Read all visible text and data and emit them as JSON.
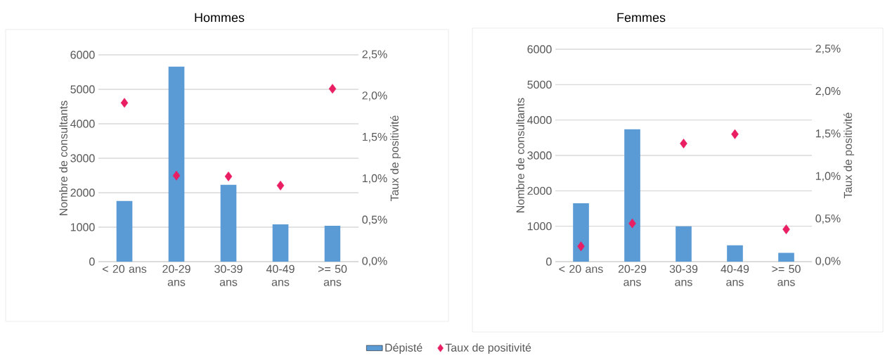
{
  "chart_data": [
    {
      "type": "bar",
      "title": "Hommes",
      "categories": [
        "< 20 ans",
        "20-29 ans",
        "30-39 ans",
        "40-49 ans",
        ">= 50 ans"
      ],
      "ylabel": "Nombre de consultants",
      "y2label": "Taux de positivité",
      "ylim": [
        0,
        6000
      ],
      "yticks": [
        0,
        1000,
        2000,
        3000,
        4000,
        5000,
        6000
      ],
      "y2lim": [
        0,
        2.5
      ],
      "y2ticks": [
        {
          "value": 0,
          "label": "0,0%"
        },
        {
          "value": 0.5,
          "label": "0,5%"
        },
        {
          "value": 1,
          "label": "1,0%"
        },
        {
          "value": 1.5,
          "label": "1,5%"
        },
        {
          "value": 2,
          "label": "2,0%"
        },
        {
          "value": 2.5,
          "label": "2,5%"
        }
      ],
      "grid": "y",
      "legend": "bottom",
      "marker": "diamond",
      "series": [
        {
          "name": "Dépisté",
          "color": "#5b9bd5",
          "values": [
            1760,
            5660,
            2230,
            1080,
            1040
          ]
        },
        {
          "name": "Taux de positivité",
          "type": "scatter",
          "axis": "y2",
          "color": "#e91e63",
          "values": [
            1.92,
            1.04,
            1.03,
            0.92,
            2.09
          ]
        }
      ]
    },
    {
      "type": "bar",
      "title": "Femmes",
      "categories": [
        "< 20 ans",
        "20-29 ans",
        "30-39 ans",
        "40-49 ans",
        ">= 50 ans"
      ],
      "ylabel": "Nombre de consultants",
      "y2label": "Taux de positivité",
      "ylim": [
        0,
        6000
      ],
      "yticks": [
        0,
        1000,
        2000,
        3000,
        4000,
        5000,
        6000
      ],
      "y2lim": [
        0,
        2.5
      ],
      "y2ticks": [
        {
          "value": 0,
          "label": "0,0%"
        },
        {
          "value": 0.5,
          "label": "0,5%"
        },
        {
          "value": 1,
          "label": "1,0%"
        },
        {
          "value": 1.5,
          "label": "1,5%"
        },
        {
          "value": 2,
          "label": "2,0%"
        },
        {
          "value": 2.5,
          "label": "2,5%"
        }
      ],
      "grid": "y",
      "marker": "diamond",
      "series": [
        {
          "color": "#5b9bd5",
          "values": [
            1650,
            3740,
            1000,
            460,
            250
          ]
        },
        {
          "type": "scatter",
          "axis": "y2",
          "color": "#e91e63",
          "values": [
            0.18,
            0.45,
            1.39,
            1.5,
            0.38
          ]
        }
      ]
    }
  ]
}
